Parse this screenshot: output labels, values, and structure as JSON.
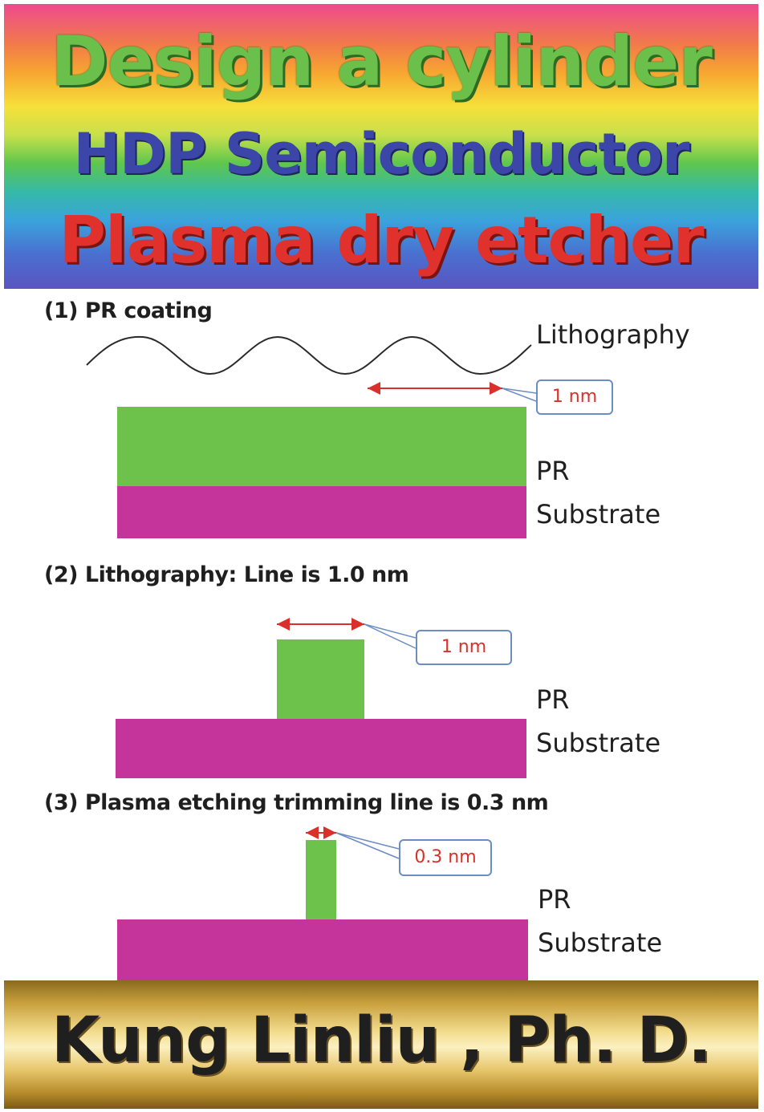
{
  "cover": {
    "title_line1": "Design a cylinder",
    "title_line2": "HDP Semiconductor",
    "title_line3": "Plasma dry etcher",
    "author": "Kung Linliu , Ph. D."
  },
  "diagram": {
    "step1": {
      "heading": "(1) PR coating",
      "wave_label": "Lithography",
      "dimension": "1 nm",
      "layer_pr": "PR",
      "layer_substrate": "Substrate"
    },
    "step2": {
      "heading": "(2) Lithography: Line is 1.0 nm",
      "dimension": "1 nm",
      "layer_pr": "PR",
      "layer_substrate": "Substrate"
    },
    "step3": {
      "heading": "(3) Plasma etching trimming line is 0.3 nm",
      "dimension": "0.3 nm",
      "layer_pr": "PR",
      "layer_substrate": "Substrate"
    },
    "colors": {
      "pr": "#6cc24a",
      "substrate": "#c4349a",
      "dimension_arrow": "#d9302b",
      "callout_border": "#6b8dc4"
    }
  }
}
